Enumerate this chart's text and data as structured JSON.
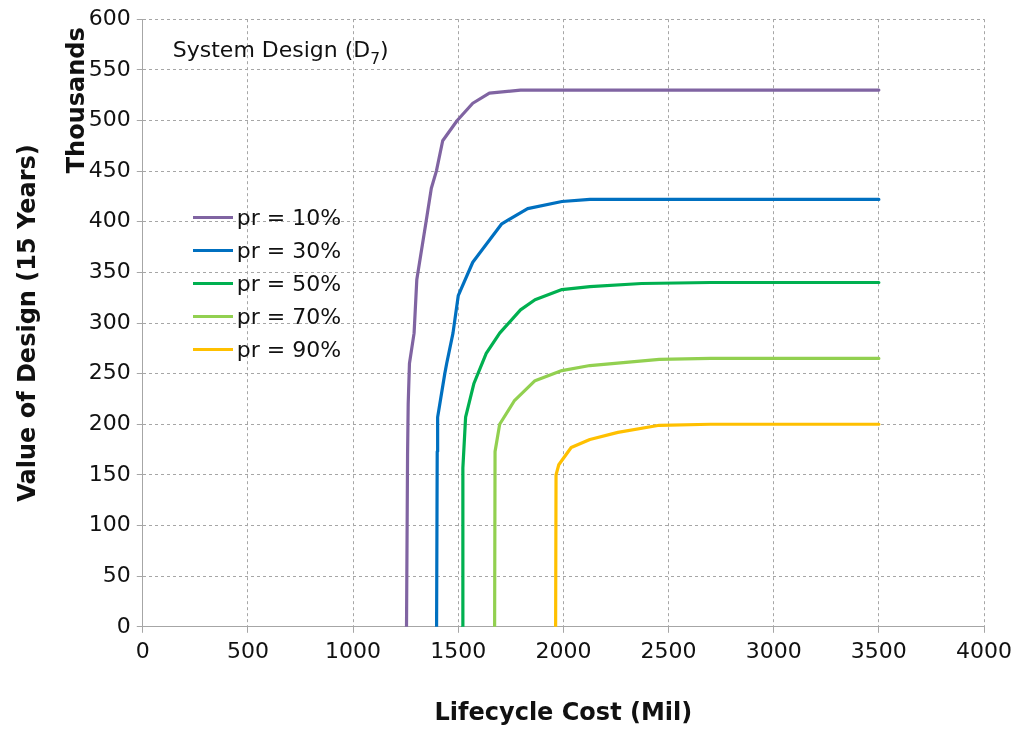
{
  "chart_data": {
    "type": "line",
    "title": "System Design (D$_{7}$)",
    "xlabel": "Lifecycle Cost (Mil)",
    "ylabel": "Value of Design (15 Years)",
    "annotations": [
      "Thousands"
    ],
    "xlim": [
      0,
      4000
    ],
    "xticks": [
      0,
      500,
      1000,
      1500,
      2000,
      2500,
      3000,
      3500,
      4000
    ],
    "ylim": [
      0,
      600
    ],
    "yticks": [
      0,
      50,
      100,
      150,
      200,
      250,
      300,
      350,
      400,
      450,
      500,
      550,
      600
    ],
    "grid": true,
    "legend": "left",
    "line_style": "solid",
    "series": [
      {
        "name": "pr = 10%",
        "color": "#8064a2",
        "x": [
          1254,
          1259,
          1262,
          1268,
          1290,
          1303,
          1347,
          1372,
          1396,
          1426,
          1495,
          1569,
          1648,
          1796,
          2000,
          3500
        ],
        "values": [
          0,
          170,
          220,
          260,
          290,
          343,
          400,
          433,
          450,
          480,
          500,
          517,
          527,
          530,
          530,
          530
        ]
      },
      {
        "name": "pr = 30%",
        "color": "#0070c0",
        "x": [
          1397,
          1400,
          1402,
          1436,
          1445,
          1475,
          1500,
          1569,
          1707,
          1830,
          1993,
          2126,
          2400,
          3500
        ],
        "values": [
          0,
          173,
          207,
          250,
          260,
          290,
          327,
          360,
          398,
          413,
          420,
          422,
          422,
          422
        ]
      },
      {
        "name": "pr = 50%",
        "color": "#00b050",
        "x": [
          1520,
          1522,
          1535,
          1574,
          1633,
          1697,
          1796,
          1865,
          1993,
          2126,
          2372,
          2700,
          3500
        ],
        "values": [
          0,
          157,
          207,
          240,
          270,
          290,
          313,
          323,
          333,
          336,
          339,
          340,
          340
        ]
      },
      {
        "name": "pr = 70%",
        "color": "#92d050",
        "x": [
          1673,
          1675,
          1697,
          1766,
          1865,
          1993,
          2126,
          2456,
          2700,
          3500
        ],
        "values": [
          0,
          173,
          200,
          223,
          243,
          253,
          258,
          264,
          265,
          265
        ]
      },
      {
        "name": "pr = 90%",
        "color": "#ffc000",
        "x": [
          1963,
          1965,
          1978,
          2037,
          2126,
          2259,
          2456,
          2700,
          3500
        ],
        "values": [
          0,
          150,
          160,
          177,
          185,
          192,
          199,
          200,
          200
        ]
      }
    ]
  }
}
